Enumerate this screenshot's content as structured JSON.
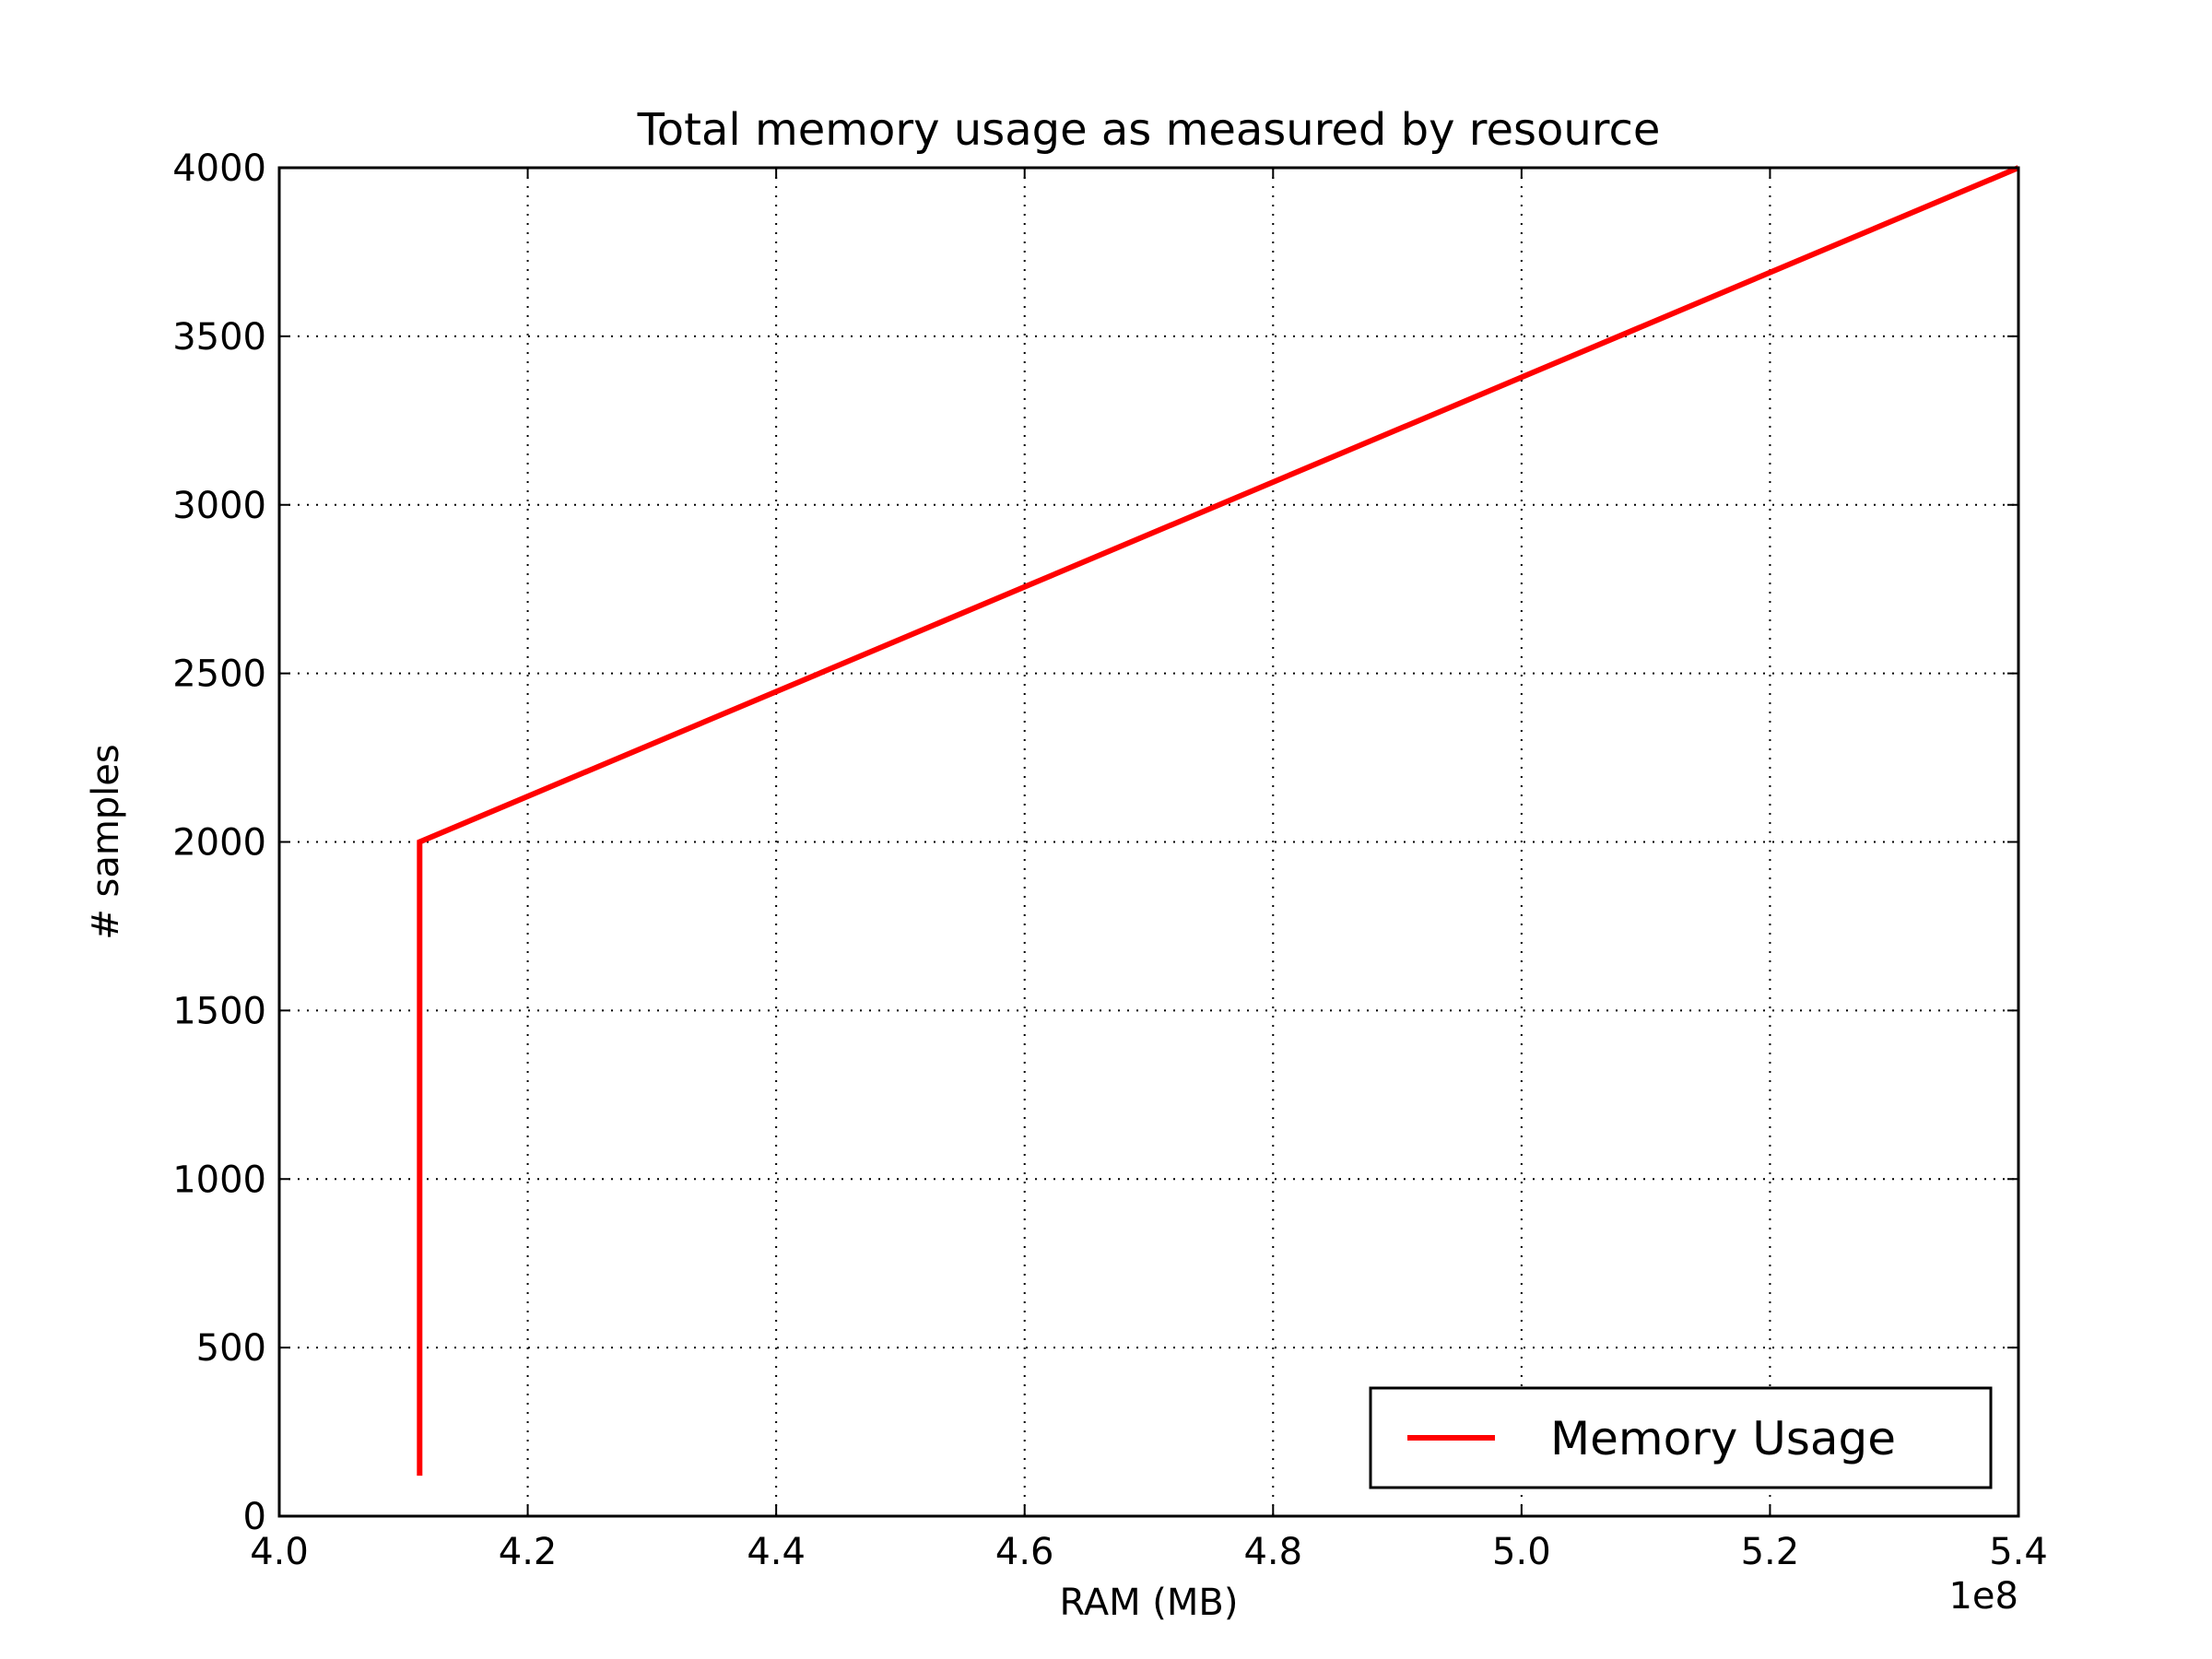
{
  "chart_data": {
    "type": "line",
    "title": "Total memory usage as measured by resource",
    "xlabel": "RAM (MB)",
    "ylabel": "# samples",
    "x_offset_label": "1e8",
    "xlim": [
      4.0,
      5.4
    ],
    "ylim": [
      0,
      4000
    ],
    "x_ticks": [
      4.0,
      4.2,
      4.4,
      4.6,
      4.8,
      5.0,
      5.2,
      5.4
    ],
    "x_tick_labels": [
      "4.0",
      "4.2",
      "4.4",
      "4.6",
      "4.8",
      "5.0",
      "5.2",
      "5.4"
    ],
    "y_ticks": [
      0,
      500,
      1000,
      1500,
      2000,
      2500,
      3000,
      3500,
      4000
    ],
    "y_tick_labels": [
      "0",
      "500",
      "1000",
      "1500",
      "2000",
      "2500",
      "3000",
      "3500",
      "4000"
    ],
    "grid": true,
    "legend_position": "lower-right",
    "series": [
      {
        "name": "Memory Usage",
        "color": "#ff0000",
        "x": [
          4.113,
          4.113,
          5.4
        ],
        "y": [
          120,
          2000,
          4000
        ]
      }
    ]
  }
}
